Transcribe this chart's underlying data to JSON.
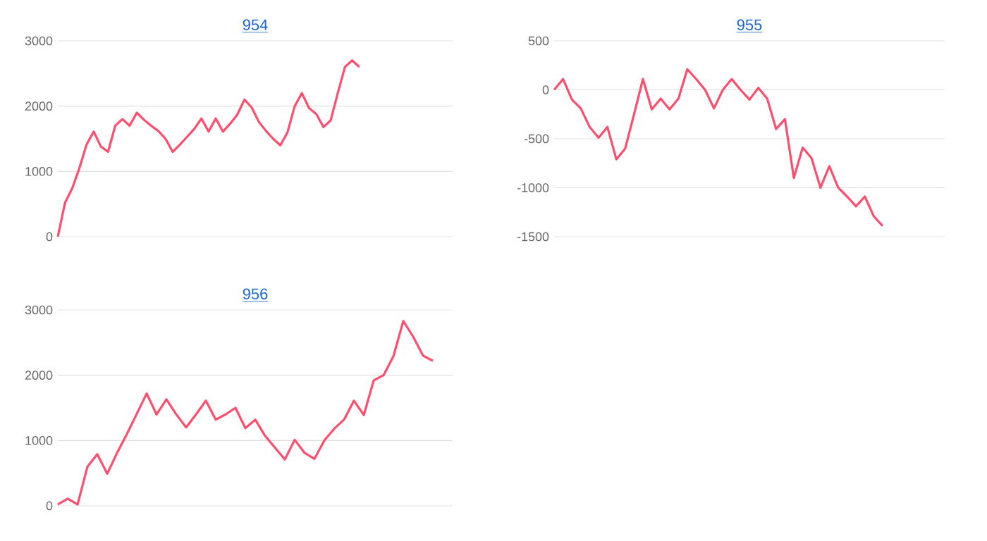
{
  "chart_data": [
    {
      "type": "line",
      "title": "954",
      "color": "#ff4d6d",
      "grid": "y",
      "tick_labels": "y",
      "marker": "none",
      "line_style": "solid",
      "ylim": [
        0,
        3000
      ],
      "yticks": [
        0,
        1000,
        2000,
        3000
      ],
      "categories": [
        null,
        null,
        null,
        null,
        null,
        null,
        null,
        null,
        null,
        null,
        null,
        null,
        null,
        null,
        null,
        null,
        null,
        null,
        null,
        null,
        null,
        null,
        null,
        null,
        null,
        null,
        null,
        null,
        null,
        null,
        null,
        null,
        null,
        null,
        null,
        null,
        null,
        null,
        null,
        null,
        null,
        null,
        null,
        null,
        null,
        null,
        null,
        null,
        null,
        null,
        null,
        null,
        null,
        null,
        null,
        null
      ],
      "values": [
        0,
        520,
        740,
        1050,
        1410,
        1610,
        1380,
        1300,
        1700,
        1800,
        1700,
        1900,
        1790,
        1700,
        1620,
        1500,
        1300,
        1410,
        1530,
        1650,
        1810,
        1610,
        1810,
        1610,
        1730,
        1870,
        2100,
        1980,
        1760,
        1620,
        1500,
        1400,
        1600,
        2000,
        2200,
        1970,
        1880,
        1680,
        1780,
        2200,
        2600,
        2700,
        2600,
        null,
        null,
        null,
        null,
        null,
        null,
        null,
        null,
        null,
        null,
        null,
        null,
        null
      ]
    },
    {
      "type": "line",
      "title": "955",
      "color": "#ff4d6d",
      "grid": "y",
      "tick_labels": "y",
      "marker": "none",
      "line_style": "solid",
      "ylim": [
        -1500,
        500
      ],
      "yticks": [
        -1500,
        -1000,
        -500,
        0,
        500
      ],
      "categories": [
        null,
        null,
        null,
        null,
        null,
        null,
        null,
        null,
        null,
        null,
        null,
        null,
        null,
        null,
        null,
        null,
        null,
        null,
        null,
        null,
        null,
        null,
        null,
        null,
        null,
        null,
        null,
        null,
        null,
        null,
        null,
        null,
        null,
        null,
        null,
        null,
        null,
        null,
        null,
        null,
        null,
        null,
        null,
        null,
        null
      ],
      "values": [
        0,
        110,
        -100,
        -190,
        -380,
        -490,
        -380,
        -710,
        -600,
        -250,
        110,
        -200,
        -90,
        -200,
        -90,
        210,
        110,
        0,
        -190,
        0,
        110,
        0,
        -100,
        20,
        -90,
        -400,
        -300,
        -900,
        -590,
        -700,
        -1000,
        -780,
        -1000,
        -1090,
        -1190,
        -1090,
        -1290,
        -1390,
        null,
        null,
        null,
        null,
        null,
        null,
        null
      ]
    },
    {
      "type": "line",
      "title": "956",
      "color": "#ff4d6d",
      "grid": "y",
      "tick_labels": "y",
      "marker": "none",
      "line_style": "solid",
      "ylim": [
        0,
        3000
      ],
      "yticks": [
        0,
        1000,
        2000,
        3000
      ],
      "categories": [
        null,
        null,
        null,
        null,
        null,
        null,
        null,
        null,
        null,
        null,
        null,
        null,
        null,
        null,
        null,
        null,
        null,
        null,
        null,
        null,
        null,
        null,
        null,
        null,
        null,
        null,
        null,
        null,
        null,
        null,
        null,
        null,
        null,
        null,
        null,
        null,
        null,
        null,
        null,
        null,
        null
      ],
      "values": [
        20,
        110,
        20,
        600,
        790,
        490,
        810,
        1100,
        1410,
        1720,
        1400,
        1630,
        1400,
        1200,
        1400,
        1610,
        1320,
        1400,
        1500,
        1190,
        1320,
        1070,
        890,
        710,
        1010,
        810,
        720,
        1000,
        1180,
        1320,
        1610,
        1390,
        1920,
        2000,
        2290,
        2830,
        2590,
        2300,
        2220,
        null,
        null
      ]
    }
  ]
}
